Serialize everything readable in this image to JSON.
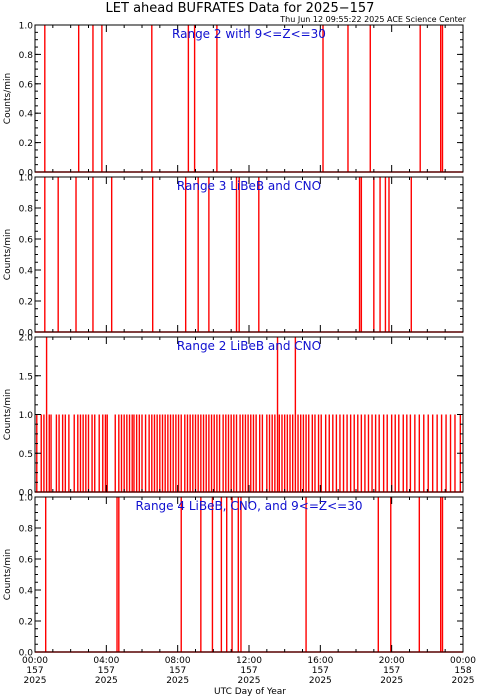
{
  "title": "LET ahead BUFRATES Data for 2025−157",
  "timestamp": "Thu Jun 12 09:55:22 2025 ACE Science Center",
  "xlabel": "UTC Day of Year",
  "chart_data": [
    {
      "type": "line",
      "label": "Range 2 with 9<=Z<=30",
      "ylabel": "Counts/min",
      "ylim": [
        0,
        1
      ],
      "yticks": [
        "0.0",
        "0.2",
        "0.4",
        "0.6",
        "0.8",
        "1.0"
      ],
      "xlim": [
        0,
        24
      ],
      "series": [
        {
          "color": "#ff0000",
          "x": [
            0.55,
            2.45,
            3.25,
            3.75,
            6.55,
            8.6,
            8.95,
            10.2,
            16.15,
            17.55,
            18.8,
            21.6,
            22.75,
            22.85
          ],
          "values": [
            1,
            1,
            1,
            1,
            1,
            1,
            1,
            1,
            1,
            1,
            1,
            1,
            1,
            1
          ]
        }
      ]
    },
    {
      "type": "line",
      "label": "Range 3 LiBeB and CNO",
      "ylabel": "Counts/min",
      "ylim": [
        0,
        1
      ],
      "yticks": [
        "0.0",
        "0.2",
        "0.4",
        "0.6",
        "0.8",
        "1.0"
      ],
      "xlim": [
        0,
        24
      ],
      "series": [
        {
          "color": "#ff0000",
          "x": [
            0.55,
            1.3,
            2.3,
            3.25,
            4.3,
            6.6,
            8.45,
            9.15,
            9.75,
            11.3,
            11.45,
            12.55,
            18.2,
            18.3,
            19.0,
            19.35,
            19.65,
            19.85,
            21.1
          ],
          "values": [
            1,
            1,
            1,
            1,
            1,
            1,
            1,
            1,
            1,
            1,
            1,
            1,
            1,
            1,
            1,
            1,
            1,
            1,
            1
          ]
        }
      ]
    },
    {
      "type": "line",
      "label": "Range 2 LiBeB and CNO",
      "ylabel": "Counts/min",
      "ylim": [
        0,
        2
      ],
      "yticks": [
        "0.0",
        "0.5",
        "1.0",
        "1.5",
        "2.0"
      ],
      "xlim": [
        0,
        24
      ],
      "series": [
        {
          "color": "#ff0000",
          "x": [
            0.1,
            0.35,
            0.5,
            0.65,
            0.8,
            0.9,
            1.2,
            1.35,
            1.55,
            1.7,
            1.9,
            2.2,
            2.4,
            2.55,
            2.7,
            2.85,
            3.0,
            3.2,
            3.35,
            3.6,
            3.8,
            3.95,
            4.05,
            4.5,
            4.7,
            4.85,
            5.0,
            5.15,
            5.3,
            5.45,
            5.55,
            5.7,
            5.85,
            6.0,
            6.2,
            6.4,
            6.55,
            6.7,
            6.85,
            7.0,
            7.15,
            7.3,
            7.45,
            7.6,
            7.75,
            7.9,
            8.05,
            8.2,
            8.4,
            8.55,
            8.7,
            8.85,
            9.0,
            9.15,
            9.3,
            9.45,
            9.6,
            9.75,
            9.9,
            10.05,
            10.2,
            10.35,
            10.55,
            10.7,
            10.85,
            11.0,
            11.15,
            11.3,
            11.5,
            11.65,
            11.8,
            11.95,
            12.1,
            12.25,
            12.4,
            12.6,
            12.75,
            13.0,
            13.15,
            13.3,
            13.45,
            13.6,
            13.7,
            13.85,
            14.0,
            14.15,
            14.3,
            14.45,
            14.6,
            14.75,
            14.9,
            15.05,
            15.2,
            15.35,
            15.55,
            15.7,
            15.9,
            16.05,
            16.3,
            16.5,
            16.7,
            16.9,
            17.1,
            17.3,
            17.5,
            17.7,
            17.9,
            18.1,
            18.3,
            18.5,
            18.7,
            18.9,
            19.1,
            19.3,
            19.55,
            19.75,
            20.0,
            20.2,
            20.4,
            20.65,
            20.85,
            21.05,
            21.3,
            21.55,
            21.8,
            22.05,
            22.3,
            22.55,
            22.8,
            23.05,
            23.3,
            23.55,
            23.85
          ],
          "values": [
            1,
            1,
            1,
            2,
            1,
            1,
            1,
            1,
            1,
            1,
            1,
            1,
            1,
            1,
            1,
            1,
            1,
            1,
            1,
            1,
            1,
            1,
            1,
            1,
            1,
            1,
            1,
            1,
            1,
            1,
            1,
            1,
            1,
            1,
            1,
            1,
            1,
            1,
            1,
            1,
            1,
            1,
            1,
            1,
            1,
            1,
            1,
            1,
            1,
            1,
            1,
            1,
            1,
            1,
            1,
            1,
            1,
            1,
            1,
            1,
            1,
            1,
            1,
            1,
            1,
            1,
            1,
            1,
            1,
            1,
            1,
            1,
            1,
            1,
            1,
            1,
            1,
            1,
            1,
            1,
            1,
            2,
            1,
            1,
            1,
            1,
            1,
            1,
            2,
            1,
            1,
            1,
            1,
            1,
            1,
            1,
            1,
            1,
            1,
            1,
            1,
            1,
            1,
            1,
            1,
            1,
            1,
            1,
            1,
            1,
            1,
            1,
            1,
            1,
            1,
            1,
            1,
            1,
            1,
            1,
            1,
            1,
            1,
            1,
            1,
            1,
            1,
            1,
            1,
            1,
            1,
            1,
            1
          ]
        }
      ]
    },
    {
      "type": "line",
      "label": "Range 4 LiBeB, CNO, and 9<=Z<=30",
      "ylabel": "Counts/min",
      "ylim": [
        0,
        1
      ],
      "yticks": [
        "0.0",
        "0.2",
        "0.4",
        "0.6",
        "0.8",
        "1.0"
      ],
      "xlim": [
        0,
        24
      ],
      "series": [
        {
          "color": "#ff0000",
          "x": [
            0.6,
            4.6,
            4.7,
            8.2,
            9.3,
            9.95,
            10.45,
            10.75,
            11.05,
            11.4,
            11.55,
            15.2,
            19.25,
            19.95,
            21.55,
            22.75,
            22.85
          ],
          "values": [
            1,
            1,
            1,
            1,
            1,
            1,
            1,
            1,
            1,
            1,
            1,
            1,
            1,
            1,
            1,
            1,
            1
          ]
        }
      ]
    }
  ],
  "x_ticks": [
    {
      "time": "00:00",
      "doy": "157",
      "year": "2025"
    },
    {
      "time": "04:00",
      "doy": "157",
      "year": "2025"
    },
    {
      "time": "08:00",
      "doy": "157",
      "year": "2025"
    },
    {
      "time": "12:00",
      "doy": "157",
      "year": "2025"
    },
    {
      "time": "16:00",
      "doy": "157",
      "year": "2025"
    },
    {
      "time": "20:00",
      "doy": "157",
      "year": "2025"
    },
    {
      "time": "00:00",
      "doy": "158",
      "year": "2025"
    }
  ]
}
